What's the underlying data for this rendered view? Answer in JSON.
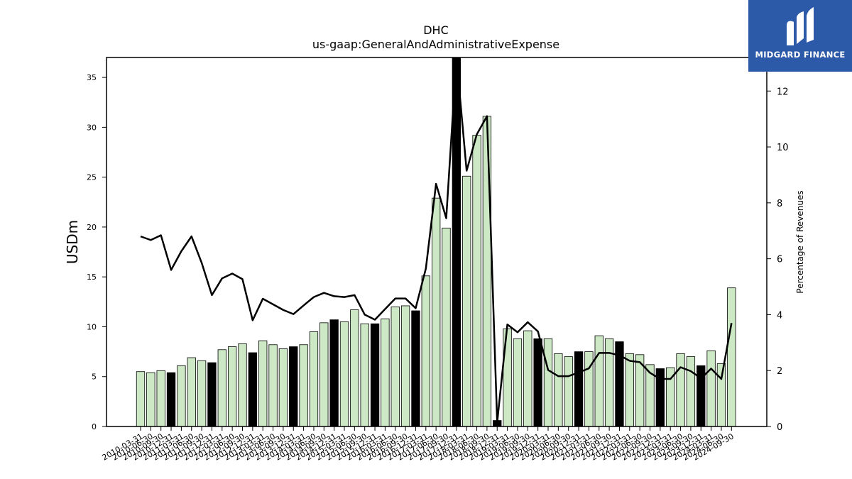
{
  "brand": {
    "name": "MIDGARD FINANCE",
    "icon": "midgard-logo-icon",
    "color": "#2c5aa8"
  },
  "chart_data": {
    "type": "bar+line",
    "title": "DHC",
    "subtitle": "us-gaap:GeneralAndAdministrativeExpense",
    "ylabel": "USDm",
    "y2label": "Percentage of Revenues",
    "ylim": [
      0,
      37
    ],
    "y2lim": [
      0,
      13.2
    ],
    "yticks": [
      0,
      5,
      10,
      15,
      20,
      25,
      30,
      35
    ],
    "y2ticks": [
      0,
      2,
      4,
      6,
      8,
      10,
      12
    ],
    "colors": {
      "bar_quarter": "#cce8c4",
      "bar_q4": "#000000",
      "line": "#000000"
    },
    "categories": [
      "2010-03-31",
      "2010-06-30",
      "2010-09-30",
      "2010-12-31",
      "2011-03-31",
      "2011-06-30",
      "2011-09-30",
      "2011-12-31",
      "2012-03-31",
      "2012-06-30",
      "2012-09-30",
      "2012-12-31",
      "2013-03-31",
      "2013-06-30",
      "2013-09-30",
      "2013-12-31",
      "2014-03-31",
      "2014-06-30",
      "2014-09-30",
      "2014-12-31",
      "2015-03-31",
      "2015-06-30",
      "2015-09-30",
      "2015-12-31",
      "2016-03-31",
      "2016-06-30",
      "2016-09-30",
      "2016-12-31",
      "2017-03-31",
      "2017-06-30",
      "2017-09-30",
      "2017-12-31",
      "2018-03-31",
      "2018-06-30",
      "2018-09-30",
      "2018-12-31",
      "2019-03-31",
      "2019-06-30",
      "2019-09-30",
      "2019-12-31",
      "2020-03-31",
      "2020-06-30",
      "2020-09-30",
      "2020-12-31",
      "2021-03-31",
      "2021-06-30",
      "2021-09-30",
      "2021-12-31",
      "2022-03-31",
      "2022-06-30",
      "2022-09-30",
      "2022-12-31",
      "2023-03-31",
      "2023-06-30",
      "2023-09-30",
      "2023-12-31",
      "2024-03-31",
      "2024-06-30",
      "2024-09-30"
    ],
    "series": [
      {
        "kind": "bar",
        "values": [
          5.5,
          5.4,
          5.6,
          5.4,
          6.1,
          6.9,
          6.6,
          6.4,
          7.7,
          8.0,
          8.3,
          7.4,
          8.6,
          8.2,
          7.8,
          8.0,
          8.2,
          9.5,
          10.4,
          10.7,
          10.5,
          11.7,
          10.3,
          10.3,
          10.8,
          12.0,
          12.1,
          11.6,
          15.1,
          22.9,
          19.9,
          37.0,
          25.1,
          29.2,
          31.1,
          0.6,
          9.8,
          8.8,
          9.6,
          8.8,
          8.8,
          7.3,
          7.0,
          7.5,
          7.5,
          9.1,
          8.8,
          8.5,
          7.3,
          7.2,
          6.2,
          5.8,
          5.9,
          7.3,
          7.0,
          6.1,
          7.6,
          6.3,
          13.9
        ]
      },
      {
        "kind": "line",
        "axis": "right",
        "values": [
          6.8,
          6.67,
          6.84,
          5.6,
          6.27,
          6.8,
          5.85,
          4.7,
          5.3,
          5.47,
          5.27,
          3.8,
          4.57,
          4.37,
          4.17,
          4.02,
          4.33,
          4.63,
          4.78,
          4.66,
          4.63,
          4.7,
          4.0,
          3.82,
          4.2,
          4.58,
          4.58,
          4.23,
          5.65,
          8.68,
          7.45,
          13.2,
          9.15,
          10.45,
          11.1,
          0.15,
          3.65,
          3.37,
          3.73,
          3.4,
          2.02,
          1.8,
          1.8,
          1.93,
          2.08,
          2.63,
          2.63,
          2.55,
          2.35,
          2.3,
          1.92,
          1.7,
          1.7,
          2.12,
          1.98,
          1.72,
          2.07,
          1.7,
          3.7
        ]
      }
    ]
  }
}
